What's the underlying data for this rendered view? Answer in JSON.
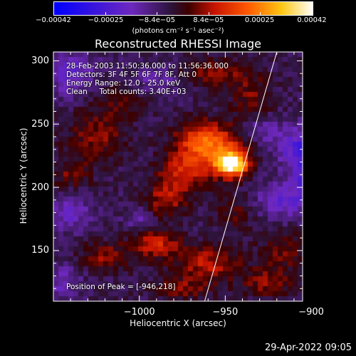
{
  "chart_data": {
    "type": "heatmap",
    "title": "Reconstructed RHESSI Image",
    "xlabel": "Heliocentric X (arcsec)",
    "ylabel": "Heliocentric Y (arcsec)",
    "xlim": [
      -1050,
      -905
    ],
    "ylim": [
      110,
      307
    ],
    "x_ticks": [
      -1000,
      -950,
      -900
    ],
    "x_tick_labels": [
      "−1000",
      "−950",
      "−900"
    ],
    "y_ticks": [
      150,
      200,
      250,
      300
    ],
    "y_tick_labels": [
      "150",
      "200",
      "250",
      "300"
    ],
    "colorbar": {
      "range": [
        -0.00042,
        0.00042
      ],
      "ticks": [
        -0.00042,
        -0.00025,
        -8.4e-05,
        8.4e-05,
        0.00025,
        0.00042
      ],
      "tick_labels": [
        "−0.00042",
        "−0.00025",
        "−8.4e−05",
        "8.4e−05",
        "0.00025",
        "0.00042"
      ],
      "unit_label": "(photons cm⁻² s⁻¹ asec⁻²)",
      "colormap": "blue-purple-red-yellow-white"
    },
    "peak": {
      "x": -946,
      "y": 218
    },
    "annotations": {
      "time": "28-Feb-2003 11:50:36.000 to 11:56:36.000",
      "detectors": "Detectors: 3F 4F 5F 6F 7F 8F, Att 0",
      "energy": "Energy Range: 12.0 - 25.0 keV",
      "clean": "Clean     Total counts: 3.40E+03",
      "peak_label": "Position of Peak = [-946,218]"
    },
    "limb_line": {
      "x_start": -962,
      "y_start": 110,
      "x_end": -920,
      "y_end": 307
    },
    "blobs": [
      {
        "x": -946,
        "y": 218,
        "amp": 0.00042,
        "sx": 6,
        "sy": 6
      },
      {
        "x": -952,
        "y": 228,
        "amp": 0.0002,
        "sx": 12,
        "sy": 14
      },
      {
        "x": -965,
        "y": 238,
        "amp": 0.00018,
        "sx": 10,
        "sy": 10
      },
      {
        "x": -975,
        "y": 212,
        "amp": 0.00016,
        "sx": 10,
        "sy": 12
      },
      {
        "x": -985,
        "y": 190,
        "amp": 0.00014,
        "sx": 8,
        "sy": 10
      },
      {
        "x": -1025,
        "y": 240,
        "amp": 0.00012,
        "sx": 12,
        "sy": 14
      },
      {
        "x": -1040,
        "y": 210,
        "amp": 0.0001,
        "sx": 8,
        "sy": 8
      },
      {
        "x": -990,
        "y": 155,
        "amp": 0.00017,
        "sx": 10,
        "sy": 8
      },
      {
        "x": -960,
        "y": 140,
        "amp": 0.00015,
        "sx": 14,
        "sy": 10
      },
      {
        "x": -1020,
        "y": 145,
        "amp": 0.00012,
        "sx": 10,
        "sy": 8
      },
      {
        "x": -935,
        "y": 270,
        "amp": 0.0001,
        "sx": 8,
        "sy": 12
      },
      {
        "x": -955,
        "y": 290,
        "amp": 0.00012,
        "sx": 14,
        "sy": 8
      },
      {
        "x": -915,
        "y": 150,
        "amp": 0.0001,
        "sx": 10,
        "sy": 10
      },
      {
        "x": -925,
        "y": 125,
        "amp": 0.00012,
        "sx": 10,
        "sy": 8
      },
      {
        "x": -975,
        "y": 120,
        "amp": 0.0001,
        "sx": 12,
        "sy": 6
      },
      {
        "x": -945,
        "y": 180,
        "amp": 8e-05,
        "sx": 8,
        "sy": 10
      },
      {
        "x": -1010,
        "y": 270,
        "amp": 8e-05,
        "sx": 10,
        "sy": 10
      },
      {
        "x": -895,
        "y": 205,
        "amp": -0.0003,
        "sx": 8,
        "sy": 10
      },
      {
        "x": -905,
        "y": 230,
        "amp": -0.0002,
        "sx": 10,
        "sy": 12
      },
      {
        "x": -915,
        "y": 190,
        "amp": -0.00014,
        "sx": 12,
        "sy": 10
      },
      {
        "x": -1040,
        "y": 290,
        "amp": -0.00014,
        "sx": 10,
        "sy": 12
      },
      {
        "x": -1040,
        "y": 180,
        "amp": -0.00012,
        "sx": 8,
        "sy": 10
      },
      {
        "x": -990,
        "y": 285,
        "amp": -0.0001,
        "sx": 10,
        "sy": 8
      },
      {
        "x": -1045,
        "y": 125,
        "amp": -0.0001,
        "sx": 8,
        "sy": 10
      },
      {
        "x": -930,
        "y": 245,
        "amp": -0.0001,
        "sx": 8,
        "sy": 8
      },
      {
        "x": -1000,
        "y": 175,
        "amp": -8e-05,
        "sx": 6,
        "sy": 6
      }
    ],
    "background_level": -6e-05
  },
  "footer": {
    "timestamp": "29-Apr-2022 09:05"
  }
}
